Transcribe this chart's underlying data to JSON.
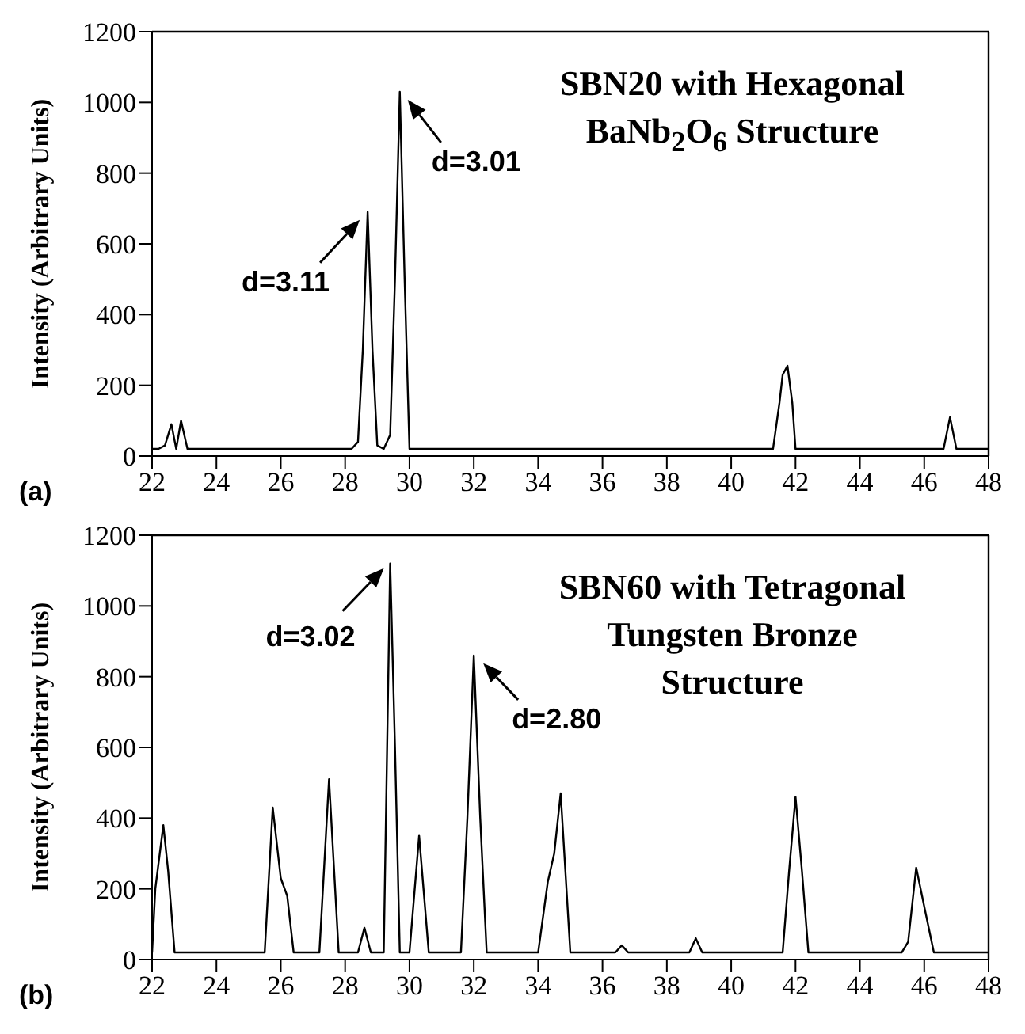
{
  "chart_data": [
    {
      "type": "line",
      "title": "SBN20 with Hexagonal BaNb$_{2}$O$_{6}$ Structure",
      "ylabel": "Intensity (Arbitrary Units)",
      "annotations": [
        {
          "text": "d=3.11",
          "x": 28.7,
          "y": 690
        },
        {
          "text": "d=3.01",
          "x": 29.7,
          "y": 1030
        },
        "(a)"
      ],
      "series": [
        {
          "color": "#000000",
          "x": [
            22.0,
            22.2,
            22.4,
            22.6,
            22.75,
            22.9,
            23.1,
            28.2,
            28.4,
            28.55,
            28.7,
            28.85,
            29.0,
            29.2,
            29.4,
            29.55,
            29.7,
            29.85,
            30.0,
            31.0,
            41.3,
            41.5,
            41.6,
            41.75,
            41.9,
            42.0,
            46.6,
            46.8,
            47.0,
            48.0
          ],
          "values": [
            20,
            20,
            30,
            90,
            20,
            100,
            20,
            20,
            40,
            300,
            690,
            300,
            30,
            20,
            60,
            500,
            1030,
            500,
            20,
            20,
            20,
            150,
            230,
            255,
            150,
            20,
            20,
            110,
            20,
            20
          ]
        }
      ],
      "xlim": [
        22,
        48
      ],
      "xticks": [
        22,
        24,
        26,
        28,
        30,
        32,
        34,
        36,
        38,
        40,
        42,
        44,
        46,
        48
      ],
      "ylim": [
        0,
        1200
      ],
      "yticks": [
        0,
        200,
        400,
        600,
        800,
        1000,
        1200
      ]
    },
    {
      "type": "line",
      "title": "SBN60 with Tetragonal Tungsten Bronze Structure",
      "ylabel": "Intensity (Arbitrary Units)",
      "annotations": [
        {
          "text": "d=3.02",
          "x": 29.4,
          "y": 1120
        },
        {
          "text": "d=2.80",
          "x": 32.0,
          "y": 860
        },
        "(b)"
      ],
      "series": [
        {
          "color": "#000000",
          "x": [
            22.0,
            22.1,
            22.35,
            22.5,
            22.7,
            25.5,
            25.75,
            26.0,
            26.2,
            26.4,
            27.2,
            27.5,
            27.8,
            28.4,
            28.6,
            28.8,
            29.2,
            29.4,
            29.55,
            29.7,
            30.0,
            30.3,
            30.6,
            31.6,
            31.8,
            32.0,
            32.2,
            32.4,
            34.0,
            34.3,
            34.5,
            34.7,
            35.0,
            36.4,
            36.6,
            36.8,
            38.7,
            38.9,
            39.1,
            41.6,
            41.8,
            42.0,
            42.2,
            42.4,
            45.3,
            45.5,
            45.75,
            46.0,
            46.3,
            48.0
          ],
          "values": [
            20,
            200,
            380,
            250,
            20,
            20,
            430,
            230,
            180,
            20,
            20,
            510,
            20,
            20,
            90,
            20,
            20,
            1120,
            600,
            20,
            20,
            350,
            20,
            20,
            400,
            860,
            400,
            20,
            20,
            220,
            300,
            470,
            20,
            20,
            40,
            20,
            20,
            60,
            20,
            20,
            250,
            460,
            250,
            20,
            20,
            50,
            260,
            150,
            20,
            20
          ]
        }
      ],
      "xlim": [
        22,
        48
      ],
      "xticks": [
        22,
        24,
        26,
        28,
        30,
        32,
        34,
        36,
        38,
        40,
        42,
        44,
        46,
        48
      ],
      "ylim": [
        0,
        1200
      ],
      "yticks": [
        0,
        200,
        400,
        600,
        800,
        1000,
        1200
      ]
    }
  ]
}
